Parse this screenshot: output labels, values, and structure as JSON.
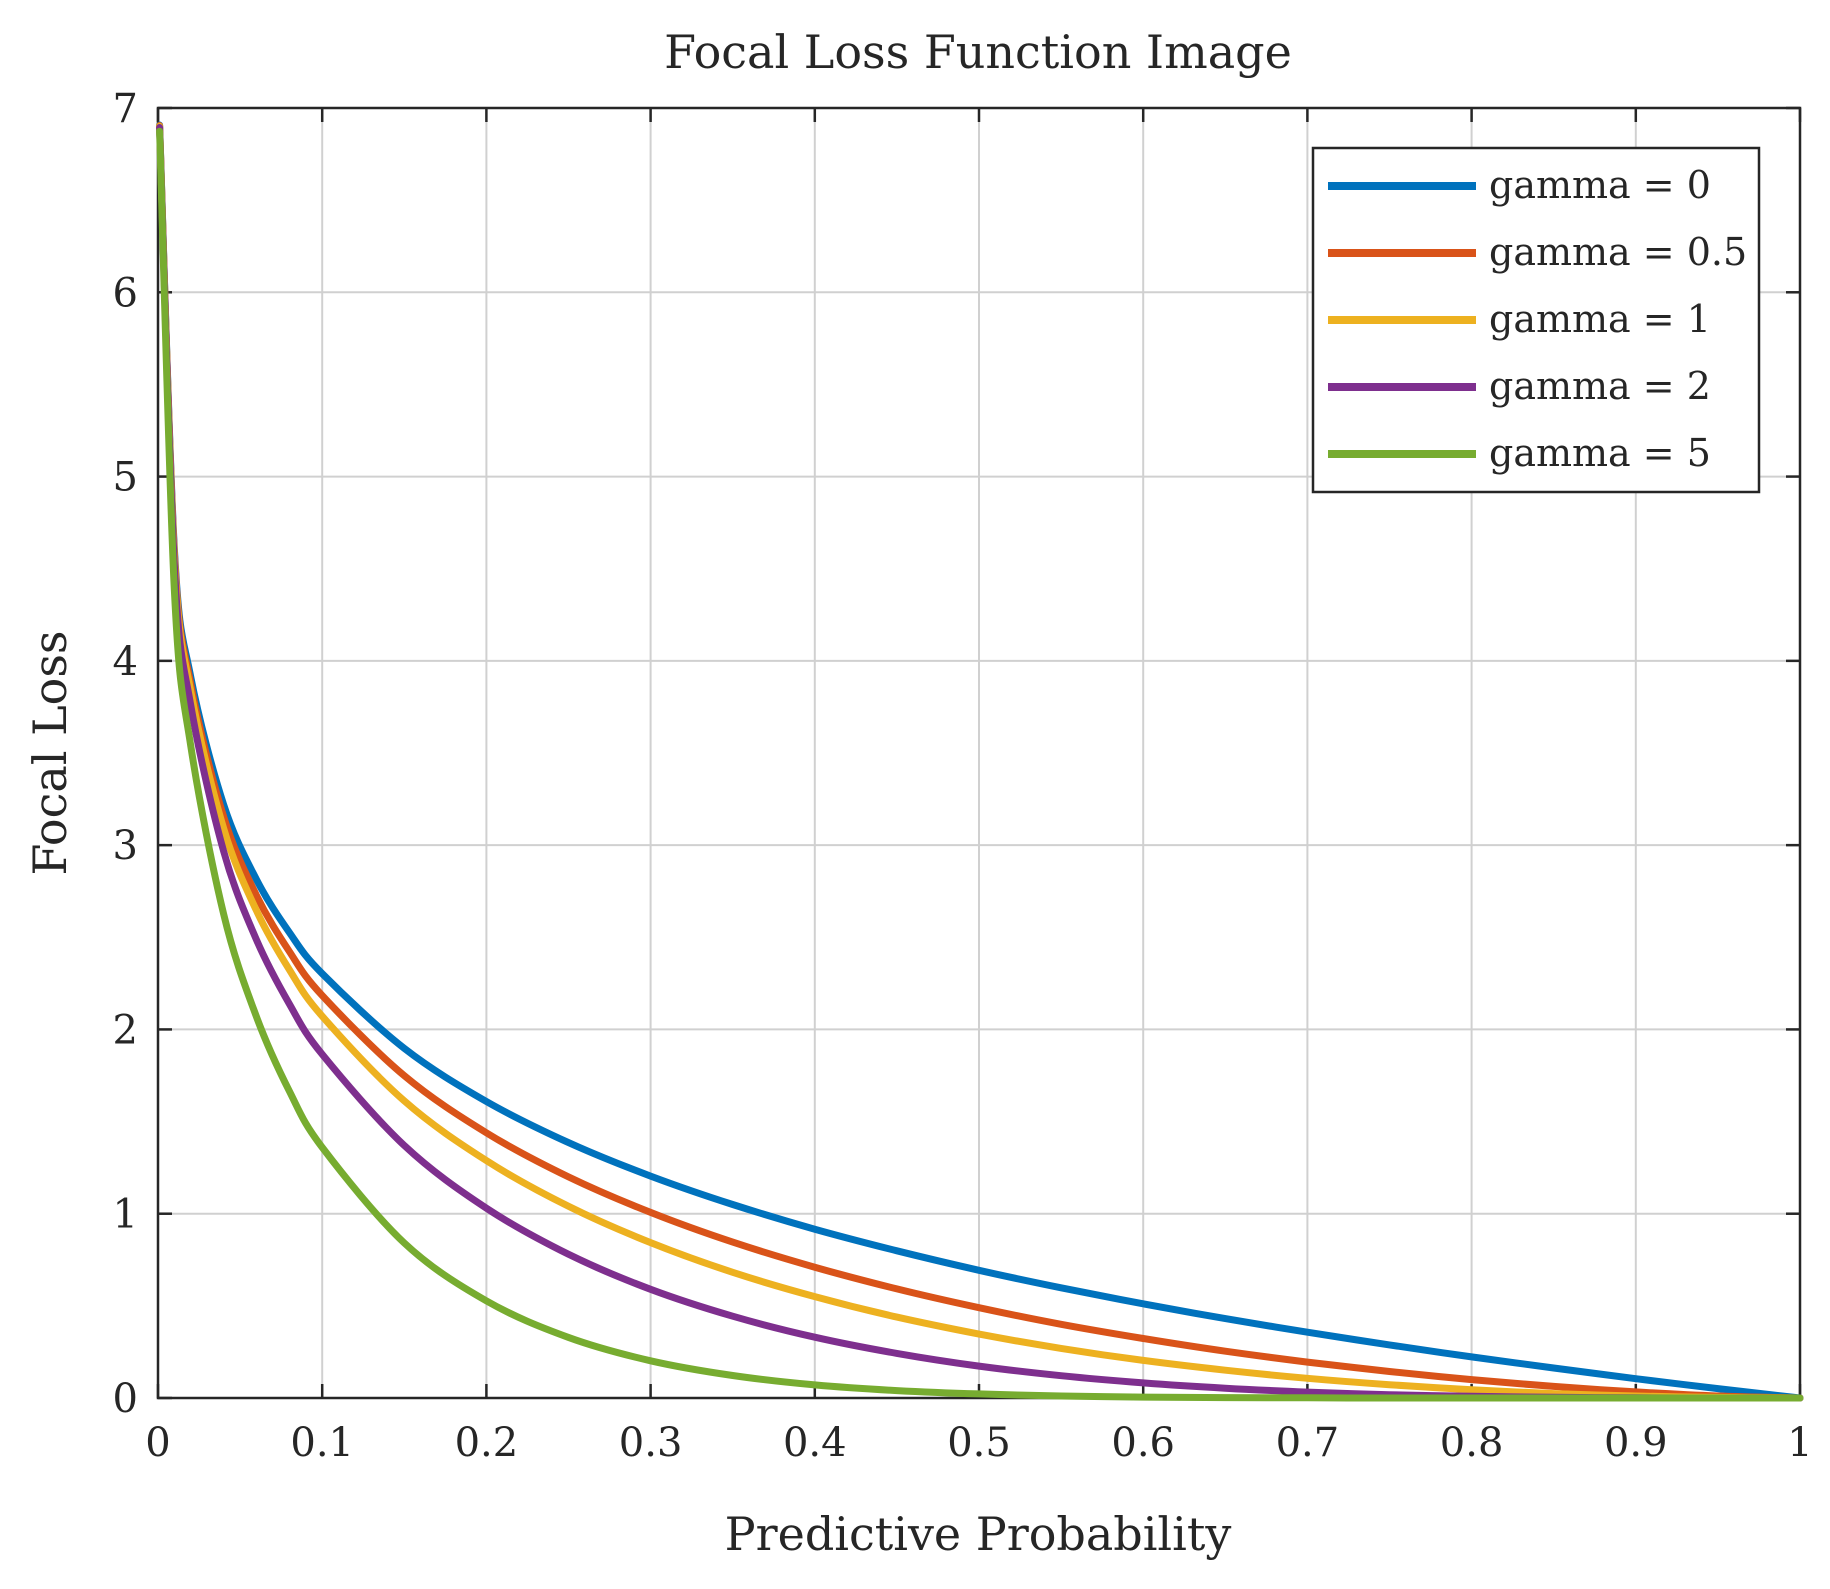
{
  "chart_data": {
    "type": "line",
    "title": "Focal Loss Function Image",
    "xlabel": "Predictive Probability",
    "ylabel": "Focal Loss",
    "xlim": [
      0,
      1
    ],
    "ylim": [
      0,
      7
    ],
    "grid": true,
    "legend_position": "top-right",
    "x_ticks": [
      0,
      0.1,
      0.2,
      0.3,
      0.4,
      0.5,
      0.6,
      0.7,
      0.8,
      0.9,
      1
    ],
    "x_tick_labels": [
      "0",
      "0.1",
      "0.2",
      "0.3",
      "0.4",
      "0.5",
      "0.6",
      "0.7",
      "0.8",
      "0.9",
      "1"
    ],
    "y_ticks": [
      0,
      1,
      2,
      3,
      4,
      5,
      6,
      7
    ],
    "y_tick_labels": [
      "0",
      "1",
      "2",
      "3",
      "4",
      "5",
      "6",
      "7"
    ],
    "x": [
      0.001,
      0.01,
      0.02,
      0.04,
      0.06,
      0.08,
      0.1,
      0.15,
      0.2,
      0.25,
      0.3,
      0.35,
      0.4,
      0.45,
      0.5,
      0.55,
      0.6,
      0.65,
      0.7,
      0.75,
      0.8,
      0.85,
      0.9,
      0.95,
      1.0
    ],
    "series": [
      {
        "name": "gamma = 0",
        "color": "#0072BD",
        "values": [
          6.908,
          4.605,
          3.912,
          3.219,
          2.813,
          2.526,
          2.303,
          1.897,
          1.609,
          1.386,
          1.204,
          1.05,
          0.916,
          0.799,
          0.693,
          0.598,
          0.511,
          0.431,
          0.357,
          0.288,
          0.223,
          0.163,
          0.105,
          0.051,
          0
        ]
      },
      {
        "name": "gamma = 0.5",
        "color": "#D95319",
        "values": [
          6.905,
          4.582,
          3.873,
          3.154,
          2.727,
          2.423,
          2.184,
          1.749,
          1.439,
          1.2,
          1.007,
          0.846,
          0.71,
          0.592,
          0.49,
          0.4,
          0.323,
          0.254,
          0.195,
          0.144,
          0.1,
          0.063,
          0.033,
          0.011,
          0
        ]
      },
      {
        "name": "gamma = 1",
        "color": "#EDB120",
        "values": [
          6.901,
          4.559,
          3.834,
          3.09,
          2.644,
          2.324,
          2.072,
          1.612,
          1.288,
          1.04,
          0.843,
          0.682,
          0.55,
          0.439,
          0.347,
          0.269,
          0.204,
          0.151,
          0.107,
          0.072,
          0.045,
          0.024,
          0.011,
          0.003,
          0
        ]
      },
      {
        "name": "gamma = 2",
        "color": "#7E2F8E",
        "values": [
          6.894,
          4.513,
          3.757,
          2.966,
          2.486,
          2.138,
          1.865,
          1.37,
          1.03,
          0.78,
          0.59,
          0.444,
          0.33,
          0.242,
          0.173,
          0.121,
          0.082,
          0.053,
          0.032,
          0.018,
          0.009,
          0.004,
          0.001,
          0.0,
          0
        ]
      },
      {
        "name": "gamma = 5",
        "color": "#77AC30",
        "values": [
          6.874,
          4.379,
          3.537,
          2.625,
          2.068,
          1.665,
          1.36,
          0.841,
          0.527,
          0.329,
          0.202,
          0.122,
          0.071,
          0.04,
          0.022,
          0.011,
          0.005,
          0.002,
          0.001,
          0.0,
          0.0,
          0.0,
          0.0,
          0.0,
          0
        ]
      }
    ]
  }
}
